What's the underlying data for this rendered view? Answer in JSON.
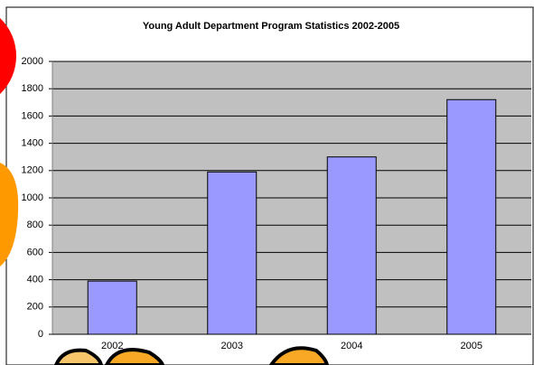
{
  "chart_data": {
    "type": "bar",
    "title": "Young Adult Department Program Statistics 2002-2005",
    "categories": [
      "2002",
      "2003",
      "2004",
      "2005"
    ],
    "values": [
      390,
      1190,
      1300,
      1720
    ],
    "color": "#9999ff",
    "ylim": [
      0,
      2000
    ],
    "yticks": [
      0,
      200,
      400,
      600,
      800,
      1000,
      1200,
      1400,
      1600,
      1800,
      2000
    ],
    "grid": true
  }
}
